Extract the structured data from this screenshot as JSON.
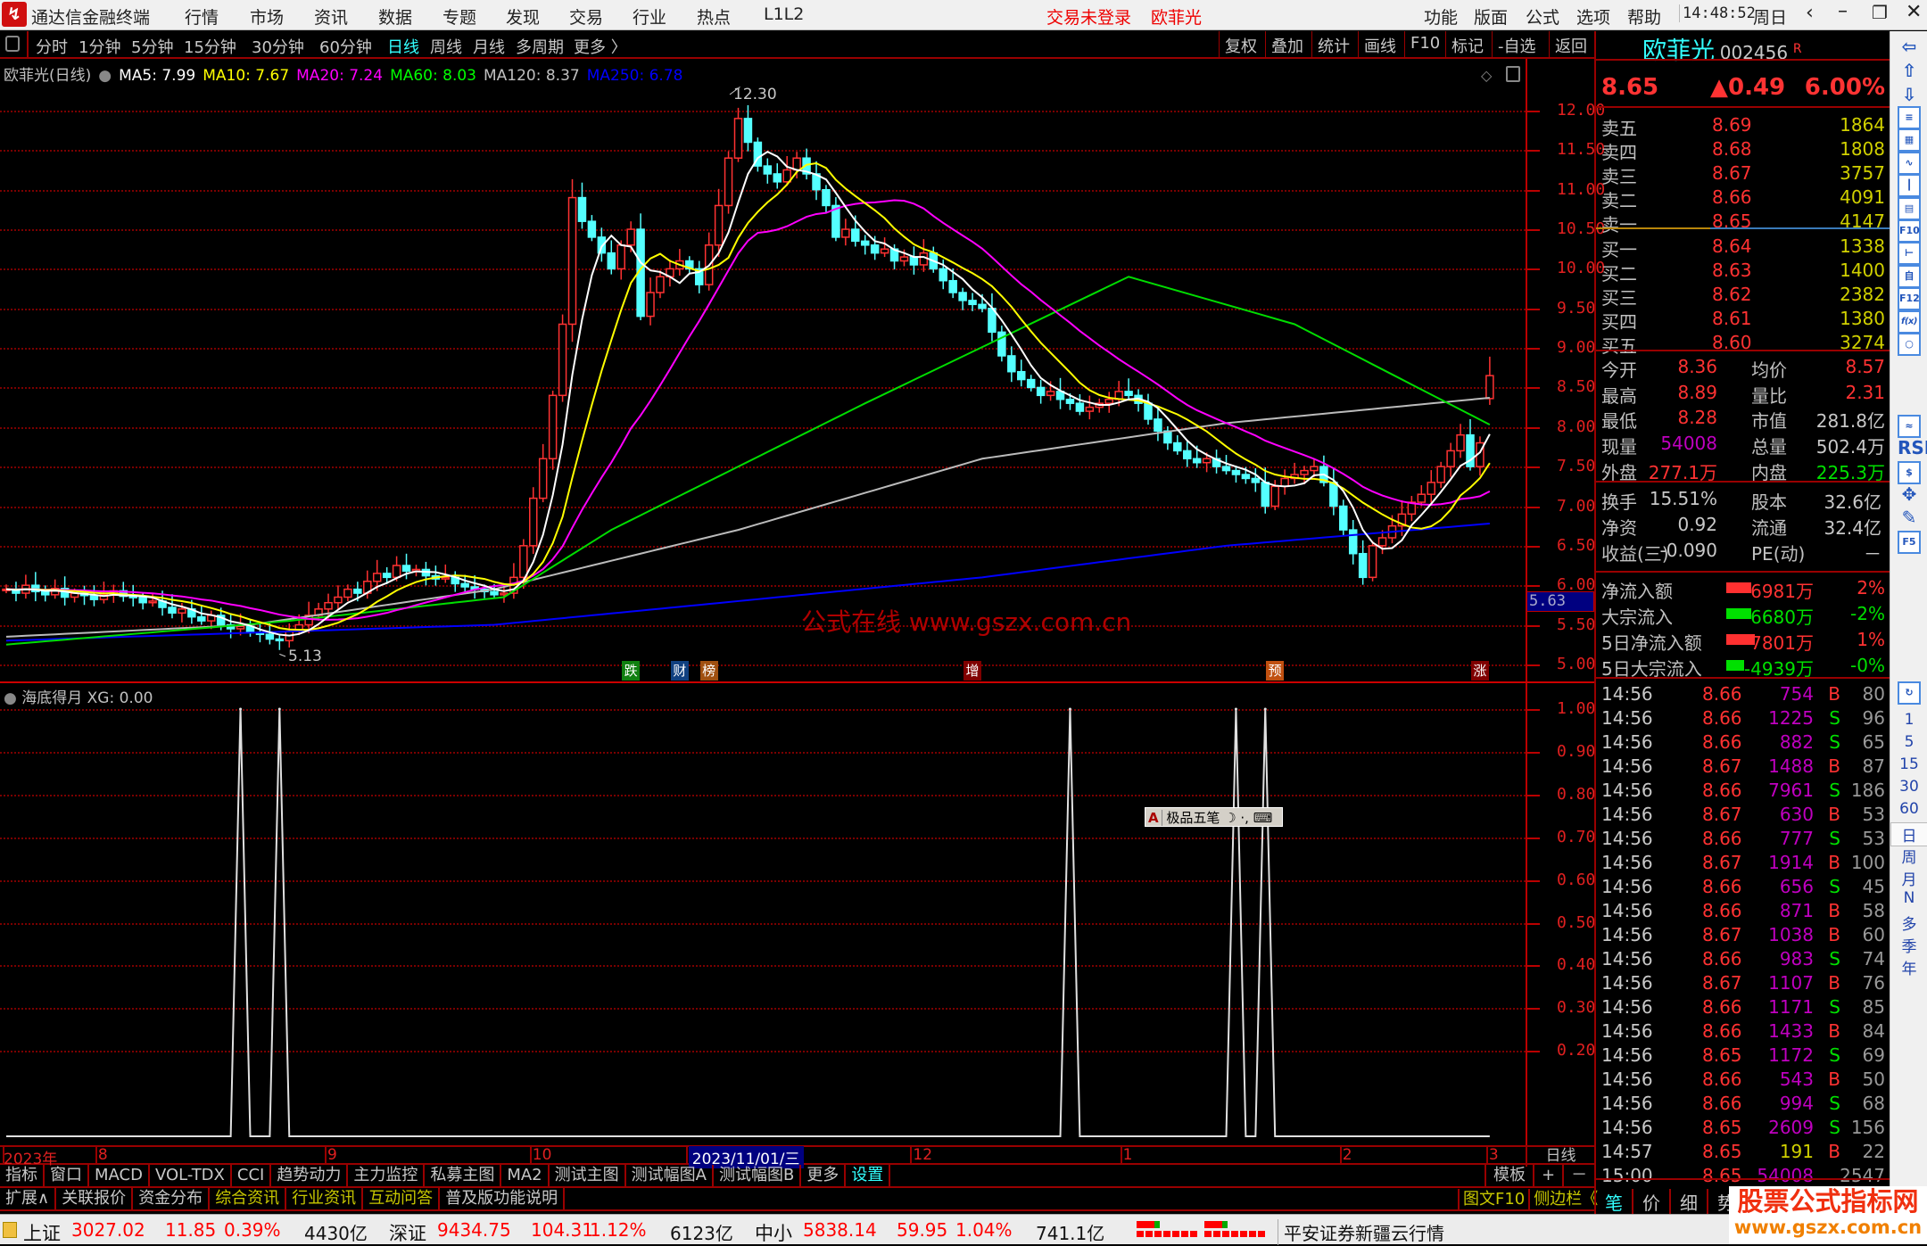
{
  "titlebar": {
    "app": "通达信金融终端",
    "menus": [
      "行情",
      "市场",
      "资讯",
      "数据",
      "专题",
      "发现",
      "交易",
      "行业",
      "热点",
      "L1L2"
    ],
    "login_status": "交易未登录",
    "stock_name": "欧菲光",
    "right_menus": [
      "功能",
      "版面",
      "公式",
      "选项",
      "帮助"
    ],
    "time": "14:48:52",
    "weekday": "周日"
  },
  "toolbar": {
    "periods": [
      "分时",
      "1分钟",
      "5分钟",
      "15分钟",
      "30分钟",
      "60分钟",
      "日线",
      "周线",
      "月线",
      "多周期",
      "更多 〉"
    ],
    "active": "日线",
    "right_buttons": [
      "复权",
      "叠加",
      "统计",
      "画线",
      "F10",
      "标记",
      "-自选",
      "返回"
    ]
  },
  "ma_legend": {
    "title": "欧菲光(日线)",
    "items": [
      {
        "label": "MA5: 7.99",
        "color": "#ffffff"
      },
      {
        "label": "MA10: 7.67",
        "color": "#ffff00"
      },
      {
        "label": "MA20: 7.24",
        "color": "#ff00ff"
      },
      {
        "label": "MA60: 8.03",
        "color": "#00ff00"
      },
      {
        "label": "MA120: 8.37",
        "color": "#c0c0c0"
      },
      {
        "label": "MA250: 6.78",
        "color": "#0000ff"
      }
    ]
  },
  "chart_data": [
    {
      "type": "candlestick",
      "price_ticks": [
        "12.00",
        "11.50",
        "11.00",
        "10.50",
        "10.00",
        "9.50",
        "9.00",
        "8.50",
        "8.00",
        "7.50",
        "7.00",
        "6.50",
        "6.00",
        "5.50",
        "5.00"
      ],
      "ylim": [
        5.0,
        12.0
      ],
      "highlight_price": "5.63",
      "annotations": {
        "high": "12.30",
        "low": "5.13"
      },
      "closes": [
        5.95,
        5.9,
        6.0,
        5.92,
        5.88,
        5.96,
        5.85,
        5.9,
        5.87,
        5.82,
        5.88,
        5.93,
        5.86,
        5.85,
        5.78,
        5.8,
        5.72,
        5.65,
        5.7,
        5.6,
        5.55,
        5.62,
        5.5,
        5.45,
        5.48,
        5.4,
        5.38,
        5.32,
        5.3,
        5.42,
        5.5,
        5.62,
        5.7,
        5.78,
        5.85,
        5.95,
        5.9,
        6.05,
        6.15,
        6.1,
        6.25,
        6.18,
        6.2,
        6.12,
        6.08,
        6.1,
        6.02,
        5.98,
        5.95,
        5.92,
        5.88,
        5.9,
        6.1,
        6.5,
        7.1,
        7.6,
        8.4,
        9.3,
        10.9,
        10.6,
        10.4,
        10.2,
        10.0,
        10.3,
        10.5,
        9.4,
        9.7,
        9.9,
        10.0,
        10.1,
        10.0,
        9.8,
        10.3,
        10.8,
        11.4,
        11.9,
        11.6,
        11.3,
        11.2,
        11.1,
        11.25,
        11.4,
        11.2,
        11.0,
        10.8,
        10.4,
        10.5,
        10.35,
        10.3,
        10.2,
        10.25,
        10.1,
        10.15,
        10.05,
        10.2,
        10.0,
        9.85,
        9.7,
        9.6,
        9.55,
        9.5,
        9.2,
        8.9,
        8.7,
        8.6,
        8.5,
        8.4,
        8.45,
        8.35,
        8.3,
        8.2,
        8.25,
        8.3,
        8.35,
        8.45,
        8.4,
        8.3,
        8.1,
        7.95,
        7.8,
        7.7,
        7.6,
        7.55,
        7.6,
        7.5,
        7.45,
        7.4,
        7.35,
        7.3,
        7.0,
        7.25,
        7.35,
        7.4,
        7.45,
        7.5,
        7.3,
        7.0,
        6.7,
        6.4,
        6.1,
        6.5,
        6.6,
        6.75,
        6.9,
        7.05,
        7.15,
        7.3,
        7.5,
        7.7,
        7.9,
        7.5,
        7.8,
        8.65
      ],
      "last_bar": {
        "open": 8.36,
        "high": 8.89,
        "low": 8.28,
        "close": 8.65
      },
      "ma_periods": {
        "MA5": 5,
        "MA10": 10,
        "MA20": 20
      },
      "ma_anchor_series": {
        "MA60": [
          [
            0,
            5.25
          ],
          [
            29,
            5.55
          ],
          [
            51,
            5.85
          ],
          [
            62,
            6.7
          ],
          [
            88,
            8.3
          ],
          [
            115,
            9.9
          ],
          [
            132,
            9.3
          ],
          [
            152,
            8.03
          ]
        ],
        "MA120": [
          [
            0,
            5.35
          ],
          [
            25,
            5.5
          ],
          [
            50,
            5.95
          ],
          [
            75,
            6.7
          ],
          [
            100,
            7.6
          ],
          [
            125,
            8.05
          ],
          [
            152,
            8.37
          ]
        ],
        "MA250": [
          [
            0,
            5.3
          ],
          [
            50,
            5.5
          ],
          [
            75,
            5.8
          ],
          [
            100,
            6.1
          ],
          [
            125,
            6.5
          ],
          [
            152,
            6.78
          ]
        ]
      },
      "ma_colors": {
        "MA5": "#ffffff",
        "MA10": "#ffff00",
        "MA20": "#ff00ff",
        "MA60": "#00dd00",
        "MA120": "#bbbbbb",
        "MA250": "#0000ff"
      },
      "event_markers": [
        {
          "bar": 64,
          "label": "跌",
          "color": "#108010"
        },
        {
          "bar": 69,
          "label": "财",
          "color": "#104080"
        },
        {
          "bar": 72,
          "label": "榜",
          "color": "#a05010"
        },
        {
          "bar": 99,
          "label": "增",
          "color": "#800000"
        },
        {
          "bar": 130,
          "label": "预",
          "color": "#c05010"
        },
        {
          "bar": 151,
          "label": "涨",
          "color": "#800000"
        }
      ],
      "x_ticks": [
        {
          "bar": 0,
          "label": "2023年"
        },
        {
          "bar": 9.5,
          "label": "8"
        },
        {
          "bar": 33,
          "label": "9"
        },
        {
          "bar": 54,
          "label": "10"
        },
        {
          "bar": 70,
          "label": "2023/11/01/三"
        },
        {
          "bar": 93,
          "label": "12"
        },
        {
          "bar": 114.5,
          "label": "1"
        },
        {
          "bar": 137,
          "label": "2"
        },
        {
          "bar": 152,
          "label": "3"
        }
      ]
    },
    {
      "type": "line",
      "title": "海底得月",
      "value_label": "XG: 0.00",
      "ylim": [
        0,
        1
      ],
      "y_ticks": [
        "1.00",
        "0.90",
        "0.80",
        "0.70",
        "0.60",
        "0.50",
        "0.40",
        "0.30",
        "0.20"
      ],
      "signal_bars": [
        24,
        28,
        109,
        126,
        129
      ]
    }
  ],
  "watermark": "公式在线  www.gszx.com.cn",
  "ime_bar": {
    "label": "极品五笔",
    "a": "A"
  },
  "period_label": "日线",
  "quote": {
    "name": "欧菲光",
    "code": "002456",
    "flag": "R",
    "price": "8.65",
    "change": "▲0.49",
    "pct": "6.00%"
  },
  "orderbook": {
    "sells": [
      [
        "卖五",
        "8.69",
        "1864"
      ],
      [
        "卖四",
        "8.68",
        "1808"
      ],
      [
        "卖三",
        "8.67",
        "3757"
      ],
      [
        "卖二",
        "8.66",
        "4091"
      ],
      [
        "卖一",
        "8.65",
        "4147"
      ]
    ],
    "buys": [
      [
        "买一",
        "8.64",
        "1338"
      ],
      [
        "买二",
        "8.63",
        "1400"
      ],
      [
        "买三",
        "8.62",
        "2382"
      ],
      [
        "买四",
        "8.61",
        "1380"
      ],
      [
        "买五",
        "8.60",
        "3274"
      ]
    ]
  },
  "stats": [
    [
      "今开",
      "8.36",
      "均价",
      "8.57"
    ],
    [
      "最高",
      "8.89",
      "量比",
      "2.31"
    ],
    [
      "最低",
      "8.28",
      "市值",
      "281.8亿"
    ],
    [
      "现量",
      "54008",
      "总量",
      "502.4万"
    ],
    [
      "外盘",
      "277.1万",
      "内盘",
      "225.3万"
    ]
  ],
  "stats2": [
    [
      "换手",
      "15.51%",
      "股本",
      "32.6亿"
    ],
    [
      "净资",
      "0.92",
      "流通",
      "32.4亿"
    ],
    [
      "收益(三)",
      "-0.090",
      "PE(动)",
      "－"
    ]
  ],
  "flows": [
    {
      "label": "净流入额",
      "value": "6981万",
      "pct": "2%",
      "dir": "up",
      "fill": 0.7
    },
    {
      "label": "大宗流入",
      "value": "-6680万",
      "pct": "-2%",
      "dir": "down",
      "fill": 0.7
    },
    {
      "label": "5日净流入额",
      "value": "7801万",
      "pct": "1%",
      "dir": "up",
      "fill": 0.8
    },
    {
      "label": "5日大宗流入",
      "value": "-4939万",
      "pct": "-0%",
      "dir": "down",
      "fill": 0.5
    }
  ],
  "ticks": [
    [
      "14:56",
      "8.66",
      "754",
      "B",
      "80"
    ],
    [
      "14:56",
      "8.66",
      "1225",
      "S",
      "96"
    ],
    [
      "14:56",
      "8.66",
      "882",
      "S",
      "65"
    ],
    [
      "14:56",
      "8.67",
      "1488",
      "B",
      "87"
    ],
    [
      "14:56",
      "8.66",
      "7961",
      "S",
      "186"
    ],
    [
      "14:56",
      "8.67",
      "630",
      "B",
      "53"
    ],
    [
      "14:56",
      "8.66",
      "777",
      "S",
      "53"
    ],
    [
      "14:56",
      "8.67",
      "1914",
      "B",
      "100"
    ],
    [
      "14:56",
      "8.66",
      "656",
      "S",
      "45"
    ],
    [
      "14:56",
      "8.66",
      "871",
      "B",
      "58"
    ],
    [
      "14:56",
      "8.67",
      "1038",
      "B",
      "60"
    ],
    [
      "14:56",
      "8.66",
      "983",
      "S",
      "74"
    ],
    [
      "14:56",
      "8.67",
      "1107",
      "B",
      "76"
    ],
    [
      "14:56",
      "8.66",
      "1171",
      "S",
      "85"
    ],
    [
      "14:56",
      "8.66",
      "1433",
      "B",
      "84"
    ],
    [
      "14:56",
      "8.65",
      "1172",
      "S",
      "69"
    ],
    [
      "14:56",
      "8.66",
      "543",
      "B",
      "50"
    ],
    [
      "14:56",
      "8.66",
      "994",
      "S",
      "68"
    ],
    [
      "14:56",
      "8.65",
      "2609",
      "S",
      "156"
    ],
    [
      "14:57",
      "8.65",
      "191",
      "B",
      "22"
    ],
    [
      "15:00",
      "8.65",
      "54008",
      "",
      "2547"
    ]
  ],
  "panel_tabs": [
    "笔",
    "价",
    "细",
    "势"
  ],
  "indicator_tabs": [
    "指标",
    "窗口",
    "MACD",
    "VOL-TDX",
    "CCI",
    "趋势动力",
    "主力监控",
    "私募主图",
    "MA2",
    "测试主图",
    "测试幅图A",
    "测试幅图B",
    "更多",
    "设置"
  ],
  "indicator_right": [
    "模板",
    "+",
    "－"
  ],
  "ext_tabs": [
    "扩展∧",
    "关联报价",
    "资金分布",
    "综合资讯",
    "行业资讯",
    "互动问答",
    "普及版功能说明"
  ],
  "ext_right": [
    "图文F10",
    "侧边栏《"
  ],
  "sidebar_numbers": [
    "1",
    "5",
    "15",
    "30",
    "60",
    "日",
    "周",
    "月",
    "N",
    "多",
    "季",
    "年"
  ],
  "sidebar_icons": [
    "back-arrow",
    "up-arrow",
    "down-arrow",
    "quote-list",
    "multi-stock",
    "trend-chart",
    "kline-chart",
    "windows",
    "F10",
    "tree",
    "自",
    "F12",
    "f(x)",
    "circle",
    "wave",
    "RSI",
    "S",
    "move",
    "pencil",
    "F5",
    "refresh"
  ],
  "statusbar": {
    "indices": [
      {
        "name": "上证",
        "value": "3027.02",
        "chg": "11.85",
        "pct": "0.39%",
        "amount": "4430亿"
      },
      {
        "name": "深证",
        "value": "9434.75",
        "chg": "104.31",
        "pct": "1.12%",
        "amount": "6123亿"
      },
      {
        "name": "中小",
        "value": "5838.14",
        "chg": "59.95",
        "pct": "1.04%",
        "amount": "741.1亿"
      }
    ],
    "server": "平安证券新疆云行情"
  },
  "corner_logo": {
    "title": "股票公式指标网",
    "url": "www.gszx.com.cn"
  }
}
